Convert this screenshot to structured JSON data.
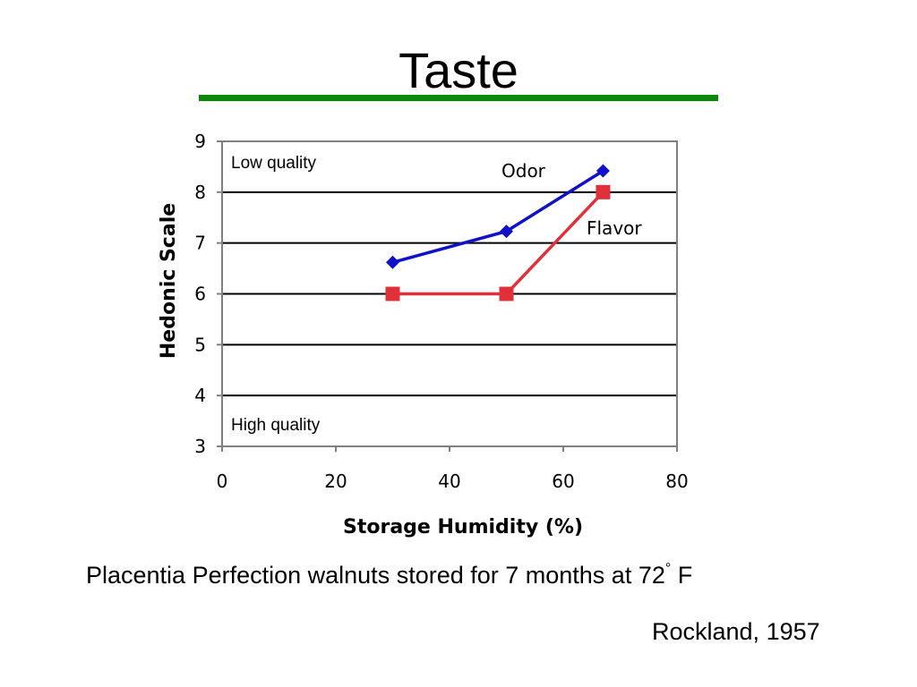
{
  "slide": {
    "title": "Taste",
    "title_rule_color": "#0a8a0a",
    "caption_main": "Placentia Perfection walnuts stored for 7 months at 72",
    "caption_degree": "°",
    "caption_unit": "F",
    "citation": "Rockland, 1957"
  },
  "chart_data": {
    "type": "line",
    "xlabel": "Storage Humidity (%)",
    "ylabel": "Hedonic Scale",
    "xlim": [
      0,
      80
    ],
    "ylim": [
      3,
      9
    ],
    "xticks": [
      0,
      20,
      40,
      60,
      80
    ],
    "yticks": [
      3,
      4,
      5,
      6,
      7,
      8,
      9
    ],
    "grid": "horizontal",
    "series": [
      {
        "name": "Odor",
        "color": "#1010c8",
        "marker": "diamond",
        "x": [
          30,
          50,
          67
        ],
        "y": [
          6.62,
          7.23,
          8.42
        ]
      },
      {
        "name": "Flavor",
        "color": "#e0303a",
        "marker": "square",
        "x": [
          30,
          50,
          67
        ],
        "y": [
          6.0,
          6.0,
          8.0
        ]
      }
    ],
    "annotations": [
      {
        "text": "Low quality",
        "position": "top-left"
      },
      {
        "text": "High quality",
        "position": "bottom-left"
      }
    ]
  }
}
